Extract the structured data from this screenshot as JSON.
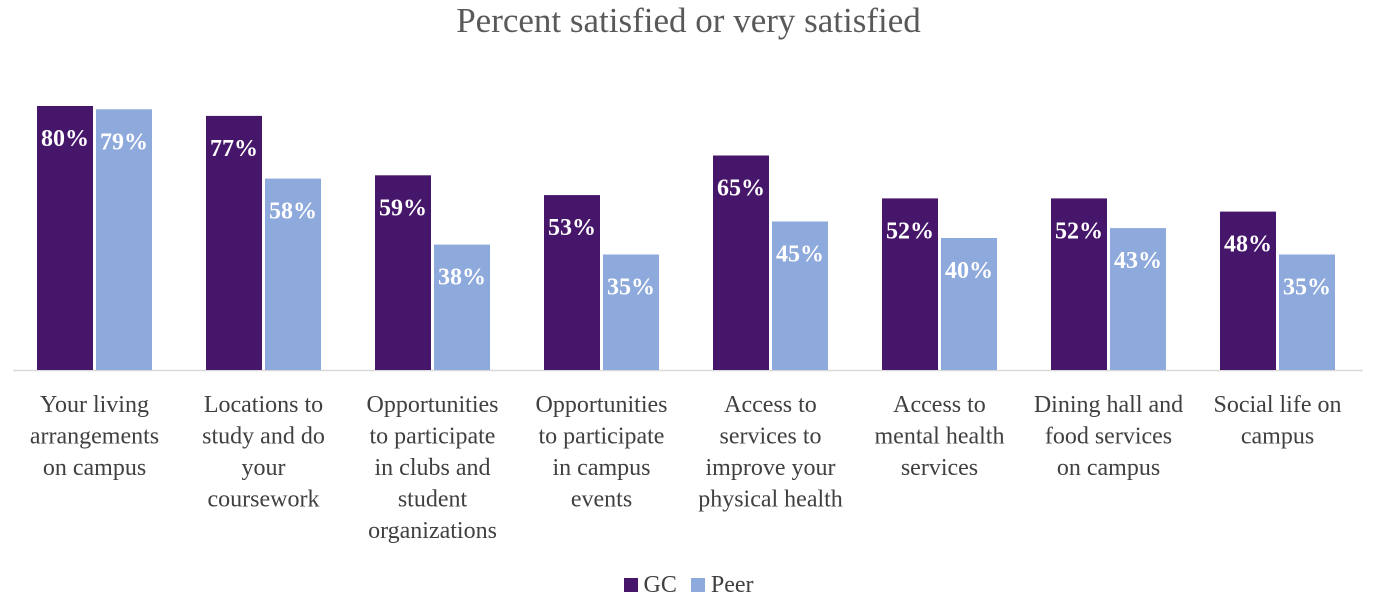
{
  "chart_data": {
    "type": "bar",
    "title": "Percent satisfied or very satisfied",
    "categories": [
      "Your living arrangements on campus",
      "Locations to study and do your coursework",
      "Opportunities to participate in clubs and student organizations",
      "Opportunities to participate in campus events",
      "Access to services to improve your physical health",
      "Access to mental health services",
      "Dining hall and food services on campus",
      "Social life on campus"
    ],
    "category_lines": [
      [
        "Your living",
        "arrangements",
        "on campus"
      ],
      [
        "Locations to",
        "study and do",
        "your",
        "coursework"
      ],
      [
        "Opportunities",
        "to participate",
        "in clubs and",
        "student",
        "organizations"
      ],
      [
        "Opportunities",
        "to participate",
        "in campus",
        "events"
      ],
      [
        "Access to",
        "services to",
        "improve your",
        "physical health"
      ],
      [
        "Access to",
        "mental health",
        "services"
      ],
      [
        "Dining hall and",
        "food services",
        "on campus"
      ],
      [
        "Social life on",
        "campus"
      ]
    ],
    "series": [
      {
        "name": "GC",
        "values": [
          80,
          77,
          59,
          53,
          65,
          52,
          52,
          48
        ],
        "labels": [
          "80%",
          "77%",
          "59%",
          "53%",
          "65%",
          "52%",
          "52%",
          "48%"
        ],
        "color": "#46166B"
      },
      {
        "name": "Peer",
        "values": [
          79,
          58,
          38,
          35,
          45,
          40,
          43,
          35
        ],
        "labels": [
          "79%",
          "58%",
          "38%",
          "35%",
          "45%",
          "40%",
          "43%",
          "35%"
        ],
        "color": "#8EA9DB"
      }
    ],
    "xlabel": "",
    "ylabel": "",
    "ylim": [
      0,
      100
    ],
    "grid": false,
    "legend": "bottom"
  }
}
